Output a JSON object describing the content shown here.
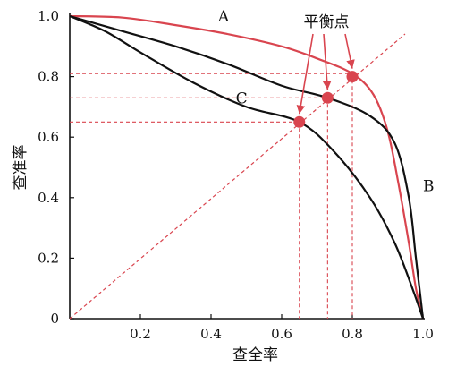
{
  "chart_data": {
    "type": "line",
    "xlabel": "查全率",
    "ylabel": "查准率",
    "xlim": [
      0,
      1
    ],
    "ylim": [
      0,
      1
    ],
    "x_ticks": [
      {
        "value": 0.2,
        "label": "0.2"
      },
      {
        "value": 0.4,
        "label": "0.4"
      },
      {
        "value": 0.6,
        "label": "0.6"
      },
      {
        "value": 0.8,
        "label": "0.8"
      },
      {
        "value": 1.0,
        "label": "1.0"
      }
    ],
    "y_ticks": [
      {
        "value": 0,
        "label": "0"
      },
      {
        "value": 0.2,
        "label": "0.2"
      },
      {
        "value": 0.4,
        "label": "0.4"
      },
      {
        "value": 0.6,
        "label": "0.6"
      },
      {
        "value": 0.8,
        "label": "0.8"
      },
      {
        "value": 1.0,
        "label": "1.0"
      }
    ],
    "series": [
      {
        "name": "A",
        "color": "#d9454f",
        "points": [
          [
            0,
            1.0
          ],
          [
            0.15,
            0.995
          ],
          [
            0.3,
            0.97
          ],
          [
            0.45,
            0.94
          ],
          [
            0.6,
            0.9
          ],
          [
            0.7,
            0.86
          ],
          [
            0.8,
            0.81
          ],
          [
            0.86,
            0.74
          ],
          [
            0.9,
            0.62
          ],
          [
            0.93,
            0.45
          ],
          [
            0.96,
            0.25
          ],
          [
            0.98,
            0.1
          ],
          [
            1.0,
            0
          ]
        ]
      },
      {
        "name": "B",
        "color": "#111111",
        "points": [
          [
            0,
            1.0
          ],
          [
            0.15,
            0.95
          ],
          [
            0.3,
            0.9
          ],
          [
            0.45,
            0.84
          ],
          [
            0.6,
            0.77
          ],
          [
            0.73,
            0.73
          ],
          [
            0.85,
            0.67
          ],
          [
            0.92,
            0.58
          ],
          [
            0.96,
            0.4
          ],
          [
            0.98,
            0.2
          ],
          [
            1.0,
            0
          ]
        ]
      },
      {
        "name": "C",
        "color": "#111111",
        "points": [
          [
            0,
            1.0
          ],
          [
            0.1,
            0.95
          ],
          [
            0.2,
            0.88
          ],
          [
            0.35,
            0.78
          ],
          [
            0.5,
            0.7
          ],
          [
            0.65,
            0.65
          ],
          [
            0.75,
            0.55
          ],
          [
            0.85,
            0.4
          ],
          [
            0.92,
            0.25
          ],
          [
            0.97,
            0.1
          ],
          [
            1.0,
            0
          ]
        ]
      }
    ],
    "diagonal": {
      "from": [
        0,
        0
      ],
      "to": [
        1,
        1
      ],
      "color": "#d9454f"
    },
    "equilibrium_points": [
      {
        "x": 0.8,
        "y": 0.8
      },
      {
        "x": 0.73,
        "y": 0.73
      },
      {
        "x": 0.65,
        "y": 0.65
      }
    ],
    "guide_y_levels": [
      0.81,
      0.73,
      0.65
    ],
    "annotation": "平衡点",
    "marker_color": "#d9454f"
  }
}
